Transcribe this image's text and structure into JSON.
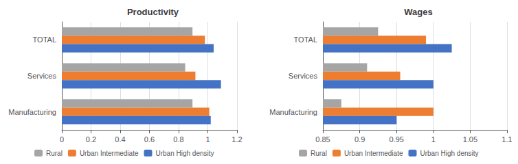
{
  "chart_data": [
    {
      "type": "bar",
      "orientation": "horizontal",
      "title": "Productivity",
      "categories": [
        "Manufacturing",
        "Services",
        "TOTAL"
      ],
      "series": [
        {
          "name": "Rural",
          "color": "#a5a5a5",
          "values": [
            0.895,
            0.845,
            0.895
          ]
        },
        {
          "name": "Urban Intermediate",
          "color": "#ed7d31",
          "values": [
            1.01,
            0.915,
            0.98
          ]
        },
        {
          "name": "Urban High density",
          "color": "#4472c4",
          "values": [
            1.02,
            1.09,
            1.04
          ]
        }
      ],
      "xlim": [
        0,
        1.2
      ],
      "xticks": [
        0,
        0.2,
        0.4,
        0.6,
        0.8,
        1,
        1.2
      ],
      "grid": true,
      "legend": "bottom"
    },
    {
      "type": "bar",
      "orientation": "horizontal",
      "title": "Wages",
      "categories": [
        "Manufacturing",
        "Services",
        "TOTAL"
      ],
      "series": [
        {
          "name": "Rural",
          "color": "#a5a5a5",
          "values": [
            0.875,
            0.91,
            0.925
          ]
        },
        {
          "name": "Urban Intermediate",
          "color": "#ed7d31",
          "values": [
            1.0,
            0.955,
            0.99
          ]
        },
        {
          "name": "Urban High density",
          "color": "#4472c4",
          "values": [
            0.95,
            1.0,
            1.025
          ]
        }
      ],
      "xlim": [
        0.85,
        1.1
      ],
      "xticks": [
        0.85,
        0.9,
        0.95,
        1,
        1.05,
        1.1
      ],
      "grid": true,
      "legend": "bottom"
    }
  ]
}
